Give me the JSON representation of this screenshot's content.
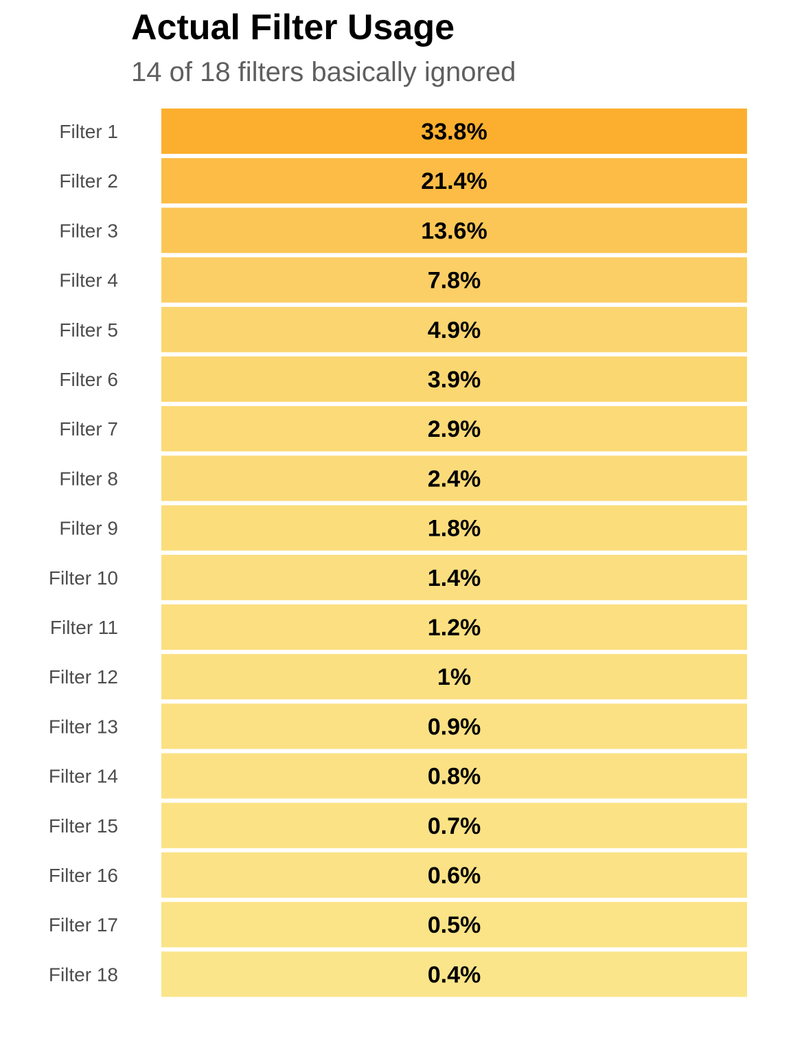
{
  "chart_data": {
    "type": "heatmap",
    "title": "Actual Filter Usage",
    "subtitle": "14 of 18 filters basically ignored",
    "categories": [
      "Filter 1",
      "Filter 2",
      "Filter 3",
      "Filter 4",
      "Filter 5",
      "Filter 6",
      "Filter 7",
      "Filter 8",
      "Filter 9",
      "Filter 10",
      "Filter 11",
      "Filter 12",
      "Filter 13",
      "Filter 14",
      "Filter 15",
      "Filter 16",
      "Filter 17",
      "Filter 18"
    ],
    "values": [
      33.8,
      21.4,
      13.6,
      7.8,
      4.9,
      3.9,
      2.9,
      2.4,
      1.8,
      1.4,
      1.2,
      1,
      0.9,
      0.8,
      0.7,
      0.6,
      0.5,
      0.4
    ],
    "value_labels": [
      "33.8%",
      "21.4%",
      "13.6%",
      "7.8%",
      "4.9%",
      "3.9%",
      "2.9%",
      "2.4%",
      "1.8%",
      "1.4%",
      "1.2%",
      "1%",
      "0.9%",
      "0.8%",
      "0.7%",
      "0.6%",
      "0.5%",
      "0.4%"
    ],
    "color_scale": {
      "low": "#FBE58A",
      "high": "#FCAF2F"
    },
    "xlabel": "",
    "ylabel": "",
    "legend": "none",
    "grid": false
  }
}
